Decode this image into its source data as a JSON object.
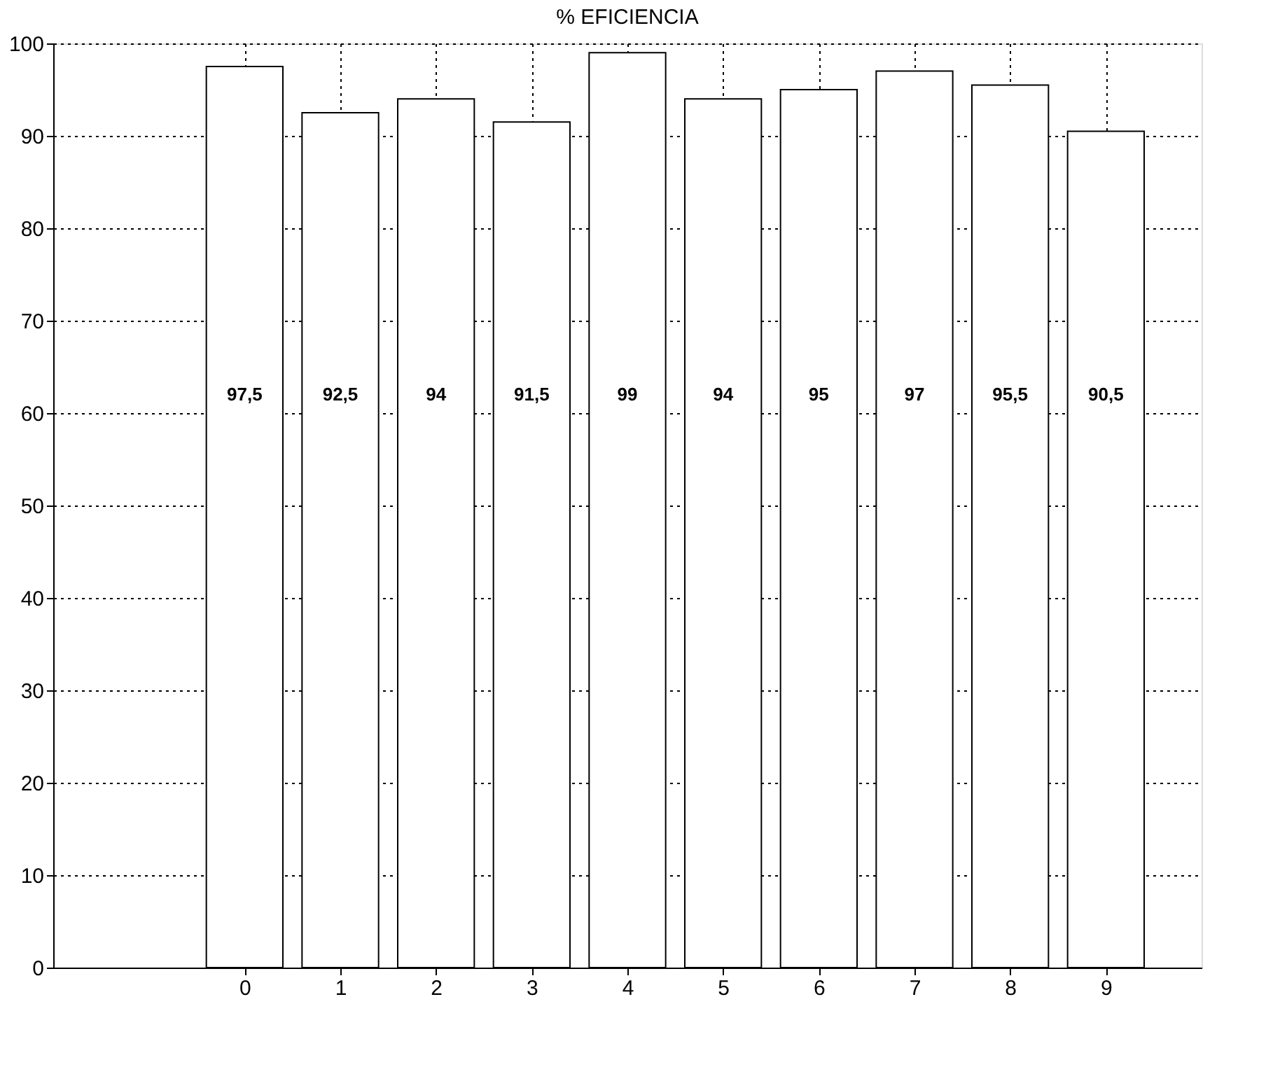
{
  "chart_data": {
    "type": "bar",
    "title": "% EFICIENCIA",
    "x": [
      0,
      1,
      2,
      3,
      4,
      5,
      6,
      7,
      8,
      9
    ],
    "values": [
      97.5,
      92.5,
      94,
      91.5,
      99,
      94,
      95,
      97,
      95.5,
      90.5
    ],
    "value_labels": [
      "97,5",
      "92,5",
      "94",
      "91,5",
      "99",
      "94",
      "95",
      "97",
      "95,5",
      "90,5"
    ],
    "color": "#ffffff",
    "xlim": [
      -2,
      10
    ],
    "xticks": [
      0,
      1,
      2,
      3,
      4,
      5,
      6,
      7,
      8,
      9
    ],
    "ylim": [
      0,
      100
    ],
    "yticks": [
      0,
      10,
      20,
      30,
      40,
      50,
      60,
      70,
      80,
      90,
      100
    ],
    "grid": true
  }
}
